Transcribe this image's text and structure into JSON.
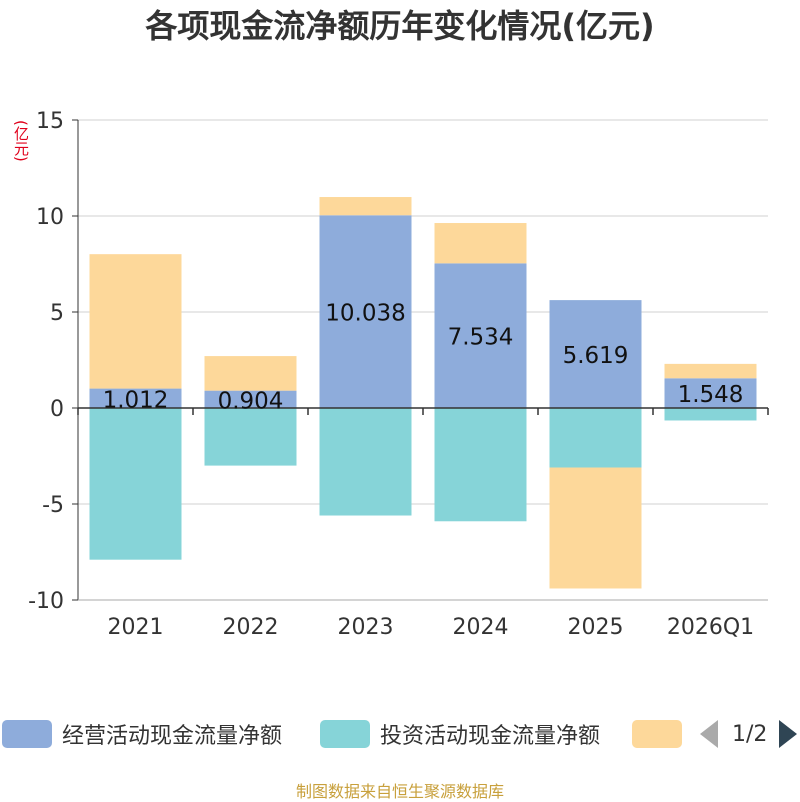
{
  "title": "各项现金流净额历年变化情况(亿元)",
  "unit_label": "(亿元)",
  "legend": {
    "items": [
      {
        "label": "经营活动现金流量净额",
        "color": "#8eacdb"
      },
      {
        "label": "投资活动现金流量净额",
        "color": "#86d4d8"
      },
      {
        "label": "",
        "color": "#fdd89a"
      }
    ],
    "page": "1/2"
  },
  "source": "制图数据来自恒生聚源数据库",
  "chart_data": {
    "type": "bar",
    "stacked": true,
    "categories": [
      "2021",
      "2022",
      "2023",
      "2024",
      "2025",
      "2026Q1"
    ],
    "ylim": [
      -10,
      15
    ],
    "yticks": [
      15,
      10,
      5,
      0,
      -5,
      -10
    ],
    "grid": true,
    "series": [
      {
        "name": "经营活动现金流量净额",
        "color": "#8eacdb",
        "values": [
          1.012,
          0.904,
          10.038,
          7.534,
          5.619,
          1.548
        ],
        "labels": [
          "1.012",
          "0.904",
          "10.038",
          "7.534",
          "5.619",
          "1.548"
        ]
      },
      {
        "name": "投资活动现金流量净额",
        "color": "#86d4d8",
        "values": [
          -7.9,
          -3.0,
          -5.6,
          -5.9,
          -3.1,
          -0.65
        ]
      },
      {
        "name": "",
        "color": "#fdd89a",
        "values": [
          7.0,
          1.8,
          0.95,
          2.1,
          -6.3,
          0.75
        ]
      }
    ]
  }
}
